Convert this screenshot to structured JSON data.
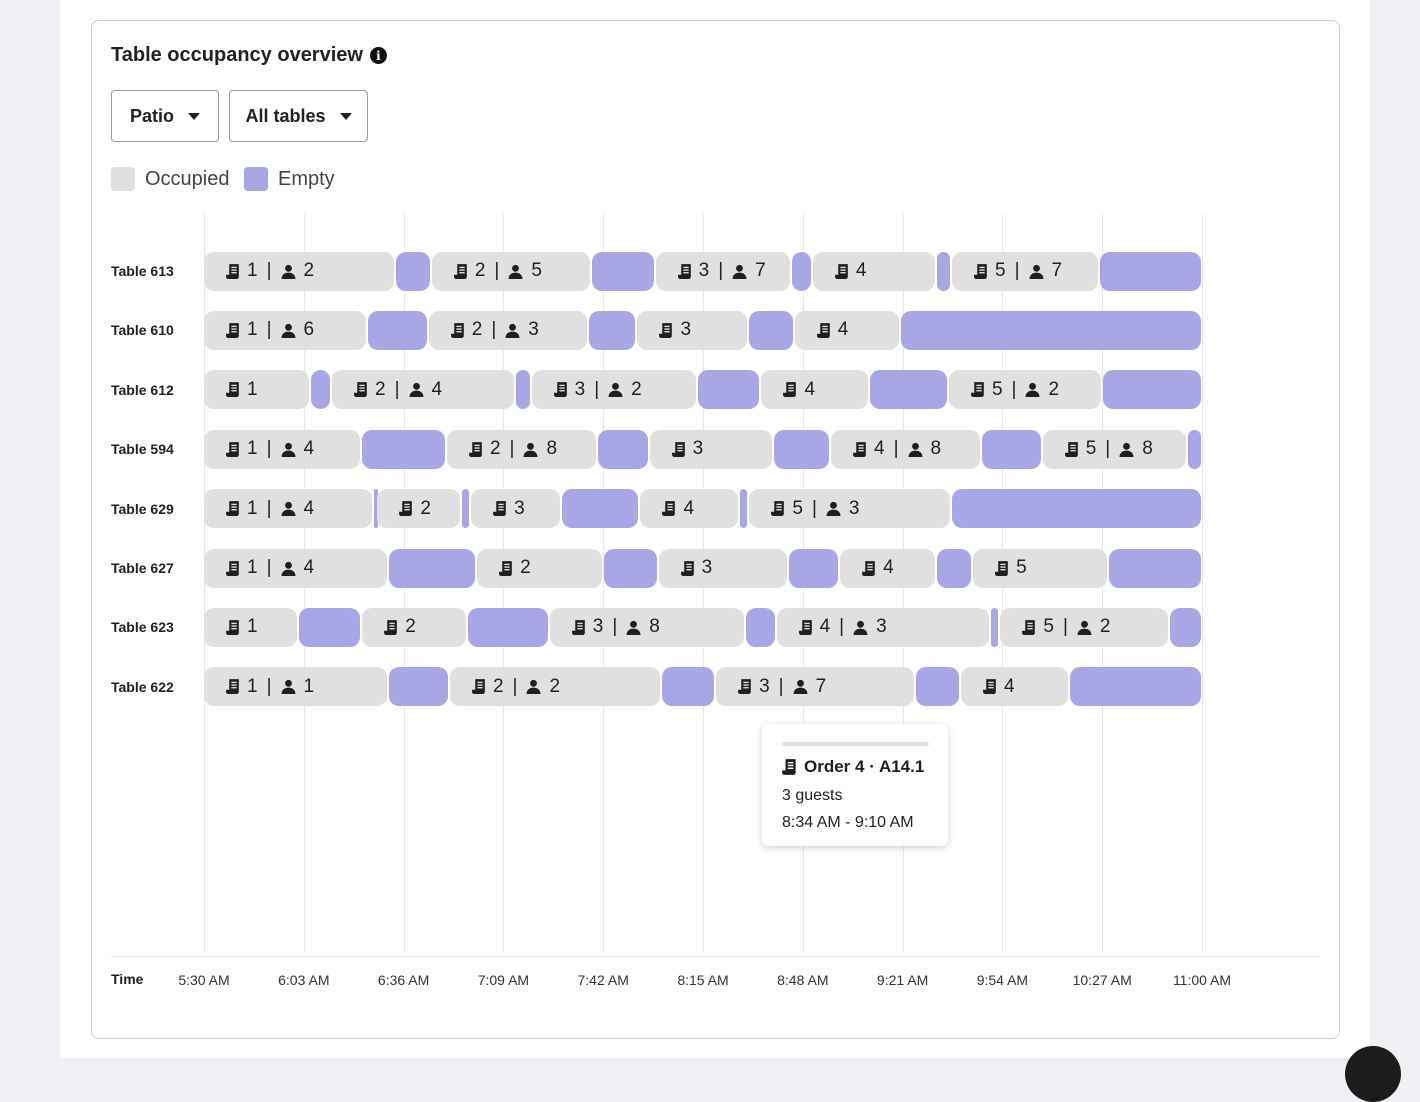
{
  "card": {
    "title": "Table occupancy overview",
    "info_icon": "info-circle-icon",
    "filters": [
      {
        "label": "Patio"
      },
      {
        "label": "All tables"
      }
    ],
    "legend": [
      {
        "label": "Occupied",
        "color": "#e0e0e0"
      },
      {
        "label": "Empty",
        "color": "#a8a6e4"
      }
    ]
  },
  "tooltip": {
    "title": "Order 4 · A14.1",
    "guests": "3 guests",
    "time": "8:34 AM - 9:10 AM"
  },
  "chart_data": {
    "type": "gantt",
    "xlabel": "Time",
    "x_ticks": [
      "5:30 AM",
      "6:03 AM",
      "6:36 AM",
      "7:09 AM",
      "7:42 AM",
      "8:15 AM",
      "8:48 AM",
      "9:21 AM",
      "9:54 AM",
      "10:27 AM",
      "11:00 AM"
    ],
    "xlim": [
      "5:30",
      "11:00"
    ],
    "icons": {
      "order": "receipt-icon",
      "guests": "person-icon"
    },
    "rows": [
      {
        "table": "Table 613",
        "segments": [
          {
            "s": "5:30",
            "e": "6:33",
            "type": "occupied",
            "order": "1",
            "guests": "2"
          },
          {
            "s": "6:33",
            "e": "6:45",
            "type": "empty"
          },
          {
            "s": "6:45",
            "e": "7:38",
            "type": "occupied",
            "order": "2",
            "guests": "5"
          },
          {
            "s": "7:38",
            "e": "7:59",
            "type": "empty"
          },
          {
            "s": "7:59",
            "e": "8:44",
            "type": "occupied",
            "order": "3",
            "guests": "7"
          },
          {
            "s": "8:44",
            "e": "8:51",
            "type": "empty"
          },
          {
            "s": "8:51",
            "e": "9:32",
            "type": "occupied",
            "order": "4"
          },
          {
            "s": "9:32",
            "e": "9:37",
            "type": "empty"
          },
          {
            "s": "9:37",
            "e": "10:26",
            "type": "occupied",
            "order": "5",
            "guests": "7"
          },
          {
            "s": "10:26",
            "e": "11:00",
            "type": "empty"
          }
        ]
      },
      {
        "table": "Table 610",
        "segments": [
          {
            "s": "5:30",
            "e": "6:24",
            "type": "occupied",
            "order": "1",
            "guests": "6"
          },
          {
            "s": "6:24",
            "e": "6:44",
            "type": "empty"
          },
          {
            "s": "6:44",
            "e": "7:37",
            "type": "occupied",
            "order": "2",
            "guests": "3"
          },
          {
            "s": "7:37",
            "e": "7:53",
            "type": "empty"
          },
          {
            "s": "7:53",
            "e": "8:30",
            "type": "occupied",
            "order": "3"
          },
          {
            "s": "8:30",
            "e": "8:45",
            "type": "empty"
          },
          {
            "s": "8:45",
            "e": "9:20",
            "type": "occupied",
            "order": "4"
          },
          {
            "s": "9:20",
            "e": "11:00",
            "type": "empty"
          }
        ]
      },
      {
        "table": "Table 612",
        "segments": [
          {
            "s": "5:30",
            "e": "6:05",
            "type": "occupied",
            "order": "1"
          },
          {
            "s": "6:05",
            "e": "6:12",
            "type": "empty"
          },
          {
            "s": "6:12",
            "e": "7:13",
            "type": "occupied",
            "order": "2",
            "guests": "4"
          },
          {
            "s": "7:13",
            "e": "7:18",
            "type": "empty"
          },
          {
            "s": "7:18",
            "e": "8:13",
            "type": "occupied",
            "order": "3",
            "guests": "2"
          },
          {
            "s": "8:13",
            "e": "8:34",
            "type": "empty"
          },
          {
            "s": "8:34",
            "e": "9:10",
            "type": "occupied",
            "order": "4"
          },
          {
            "s": "9:10",
            "e": "9:36",
            "type": "empty"
          },
          {
            "s": "9:36",
            "e": "10:27",
            "type": "occupied",
            "order": "5",
            "guests": "2"
          },
          {
            "s": "10:27",
            "e": "11:00",
            "type": "empty"
          }
        ]
      },
      {
        "table": "Table 594",
        "segments": [
          {
            "s": "5:30",
            "e": "6:22",
            "type": "occupied",
            "order": "1",
            "guests": "4"
          },
          {
            "s": "6:22",
            "e": "6:50",
            "type": "empty"
          },
          {
            "s": "6:50",
            "e": "7:40",
            "type": "occupied",
            "order": "2",
            "guests": "8"
          },
          {
            "s": "7:40",
            "e": "7:57",
            "type": "empty"
          },
          {
            "s": "7:57",
            "e": "8:38",
            "type": "occupied",
            "order": "3"
          },
          {
            "s": "8:38",
            "e": "8:57",
            "type": "empty"
          },
          {
            "s": "8:57",
            "e": "9:47",
            "type": "occupied",
            "order": "4",
            "guests": "8"
          },
          {
            "s": "9:47",
            "e": "10:07",
            "type": "empty"
          },
          {
            "s": "10:07",
            "e": "10:55",
            "type": "occupied",
            "order": "5",
            "guests": "8"
          },
          {
            "s": "10:55",
            "e": "11:00",
            "type": "empty"
          }
        ]
      },
      {
        "table": "Table 629",
        "segments": [
          {
            "s": "5:30",
            "e": "6:26",
            "type": "occupied",
            "order": "1",
            "guests": "4"
          },
          {
            "s": "6:26",
            "e": "6:27",
            "type": "empty"
          },
          {
            "s": "6:27",
            "e": "6:55",
            "type": "occupied",
            "order": "2"
          },
          {
            "s": "6:55",
            "e": "6:58",
            "type": "empty"
          },
          {
            "s": "6:58",
            "e": "7:28",
            "type": "occupied",
            "order": "3"
          },
          {
            "s": "7:28",
            "e": "7:54",
            "type": "empty"
          },
          {
            "s": "7:54",
            "e": "8:27",
            "type": "occupied",
            "order": "4"
          },
          {
            "s": "8:27",
            "e": "8:30",
            "type": "empty"
          },
          {
            "s": "8:30",
            "e": "9:37",
            "type": "occupied",
            "order": "5",
            "guests": "3"
          },
          {
            "s": "9:37",
            "e": "11:00",
            "type": "empty"
          }
        ]
      },
      {
        "table": "Table 627",
        "segments": [
          {
            "s": "5:30",
            "e": "6:31",
            "type": "occupied",
            "order": "1",
            "guests": "4"
          },
          {
            "s": "6:31",
            "e": "7:00",
            "type": "empty"
          },
          {
            "s": "7:00",
            "e": "7:42",
            "type": "occupied",
            "order": "2"
          },
          {
            "s": "7:42",
            "e": "8:00",
            "type": "empty"
          },
          {
            "s": "8:00",
            "e": "8:43",
            "type": "occupied",
            "order": "3"
          },
          {
            "s": "8:43",
            "e": "9:00",
            "type": "empty"
          },
          {
            "s": "9:00",
            "e": "9:32",
            "type": "occupied",
            "order": "4"
          },
          {
            "s": "9:32",
            "e": "9:44",
            "type": "empty"
          },
          {
            "s": "9:44",
            "e": "10:29",
            "type": "occupied",
            "order": "5"
          },
          {
            "s": "10:29",
            "e": "11:00",
            "type": "empty"
          }
        ]
      },
      {
        "table": "Table 623",
        "segments": [
          {
            "s": "5:30",
            "e": "6:01",
            "type": "occupied",
            "order": "1"
          },
          {
            "s": "6:01",
            "e": "6:22",
            "type": "empty"
          },
          {
            "s": "6:22",
            "e": "6:57",
            "type": "occupied",
            "order": "2"
          },
          {
            "s": "6:57",
            "e": "7:24",
            "type": "empty"
          },
          {
            "s": "7:24",
            "e": "8:29",
            "type": "occupied",
            "order": "3",
            "guests": "8"
          },
          {
            "s": "8:29",
            "e": "8:39",
            "type": "empty"
          },
          {
            "s": "8:39",
            "e": "9:50",
            "type": "occupied",
            "order": "4",
            "guests": "3"
          },
          {
            "s": "9:50",
            "e": "9:53",
            "type": "empty"
          },
          {
            "s": "9:53",
            "e": "10:49",
            "type": "occupied",
            "order": "5",
            "guests": "2"
          },
          {
            "s": "10:49",
            "e": "11:00",
            "type": "empty"
          }
        ]
      },
      {
        "table": "Table 622",
        "segments": [
          {
            "s": "5:30",
            "e": "6:31",
            "type": "occupied",
            "order": "1",
            "guests": "1"
          },
          {
            "s": "6:31",
            "e": "6:51",
            "type": "empty"
          },
          {
            "s": "6:51",
            "e": "8:01",
            "type": "occupied",
            "order": "2",
            "guests": "2"
          },
          {
            "s": "8:01",
            "e": "8:19",
            "type": "empty"
          },
          {
            "s": "8:19",
            "e": "9:25",
            "type": "occupied",
            "order": "3",
            "guests": "7"
          },
          {
            "s": "9:25",
            "e": "9:40",
            "type": "empty"
          },
          {
            "s": "9:40",
            "e": "10:16",
            "type": "occupied",
            "order": "4"
          },
          {
            "s": "10:16",
            "e": "11:00",
            "type": "empty"
          }
        ]
      }
    ]
  }
}
